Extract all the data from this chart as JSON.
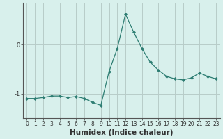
{
  "x": [
    0,
    1,
    2,
    3,
    4,
    5,
    6,
    7,
    8,
    9,
    10,
    11,
    12,
    13,
    14,
    15,
    16,
    17,
    18,
    19,
    20,
    21,
    22,
    23
  ],
  "y": [
    -1.1,
    -1.1,
    -1.08,
    -1.05,
    -1.05,
    -1.08,
    -1.06,
    -1.1,
    -1.18,
    -1.24,
    -0.55,
    -0.08,
    0.62,
    0.25,
    -0.08,
    -0.36,
    -0.52,
    -0.65,
    -0.7,
    -0.72,
    -0.68,
    -0.58,
    -0.65,
    -0.7
  ],
  "line_color": "#2d7d72",
  "marker": "D",
  "marker_size": 2.0,
  "background_color": "#d8f0ec",
  "grid_color": "#b8ccc8",
  "xlabel": "Humidex (Indice chaleur)",
  "yticks": [
    -1,
    0
  ],
  "ylim": [
    -1.5,
    0.85
  ],
  "xlim": [
    -0.5,
    23.5
  ],
  "tick_color": "#2d7d72",
  "label_fontsize": 7.5,
  "tick_fontsize": 6,
  "spine_color": "#555555"
}
